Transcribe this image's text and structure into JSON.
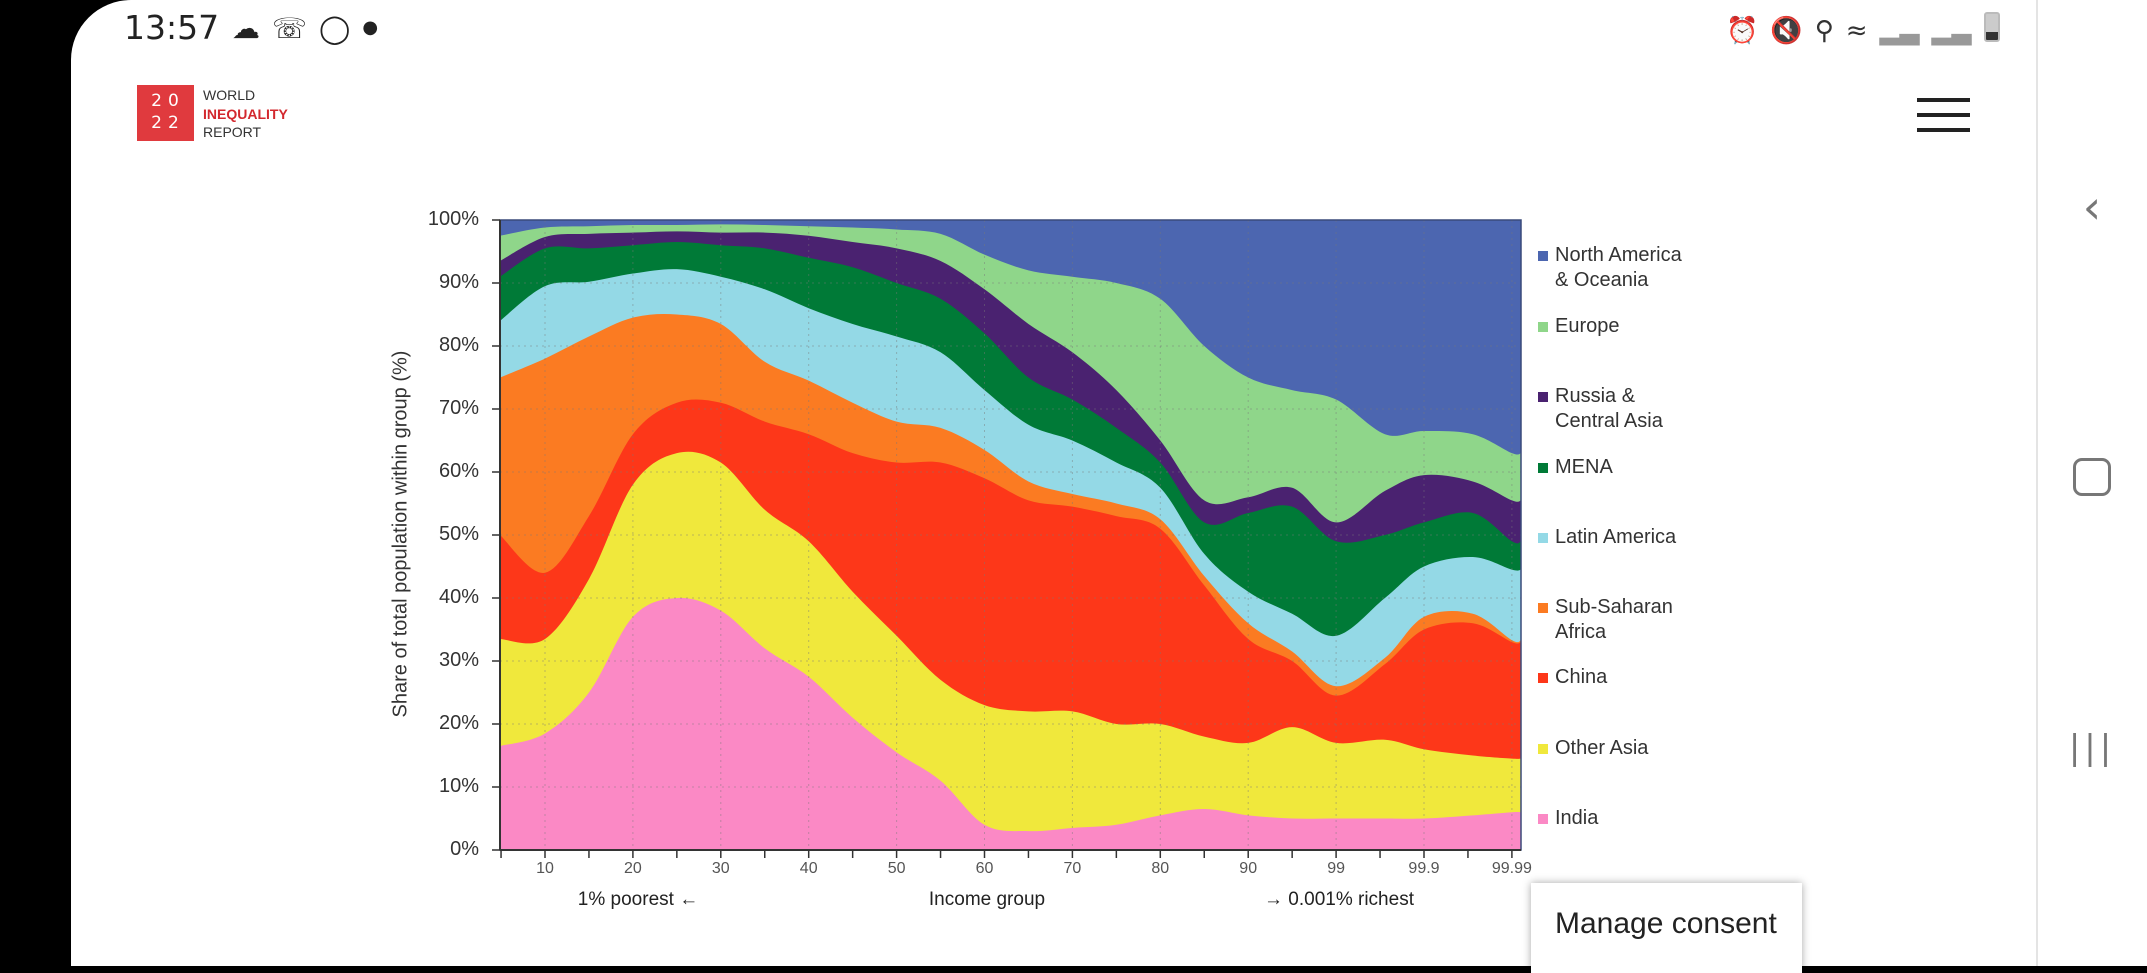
{
  "status_bar": {
    "time": "13:57",
    "left_icons": [
      "cloud-sync-icon",
      "whatsapp-icon",
      "instagram-icon",
      "dot-icon"
    ],
    "right_icons": [
      "alarm-icon",
      "mute-icon",
      "location-icon",
      "wifi-icon",
      "signal-icon",
      "signal-icon",
      "battery-icon"
    ]
  },
  "header": {
    "logo_year_top": "20",
    "logo_year_bottom": "22",
    "logo_line1": "WORLD",
    "logo_line2": "INEQUALITY",
    "logo_line3": "REPORT",
    "menu_icon": "hamburger-icon"
  },
  "consent": {
    "label": "Manage consent"
  },
  "nav": {
    "icons": [
      "back-icon",
      "home-icon",
      "recents-icon"
    ]
  },
  "chart_data": {
    "type": "area",
    "stacked": true,
    "ylabel": "Share of total population within group (%)",
    "xlabel": "Income group",
    "x_left_note": "1% poorest ←",
    "x_right_note": "→ 0.001% richest",
    "ylim": [
      0,
      100
    ],
    "y_ticks": [
      "0%",
      "10%",
      "20%",
      "30%",
      "40%",
      "50%",
      "60%",
      "70%",
      "80%",
      "90%",
      "100%"
    ],
    "x_ticks": [
      "10",
      "20",
      "30",
      "40",
      "50",
      "60",
      "70",
      "80",
      "90",
      "99",
      "99.9",
      "99.99"
    ],
    "x_scale": "percentile rank (non-linear above 90)",
    "grid": true,
    "legend": "right",
    "x": [
      5,
      10,
      15,
      20,
      25,
      30,
      35,
      40,
      45,
      50,
      55,
      60,
      65,
      70,
      75,
      80,
      85,
      90,
      94.5,
      99,
      99.5,
      99.9,
      99.95,
      99.99
    ],
    "series": [
      {
        "name": "India",
        "color": "#fb89c5",
        "values": [
          16.5,
          18.5,
          25,
          37,
          40,
          38,
          32,
          27.5,
          21,
          15.5,
          11,
          4,
          3,
          3.5,
          4,
          5.5,
          6.5,
          5.5,
          5,
          5,
          5,
          5,
          5.5,
          6
        ]
      },
      {
        "name": "Other Asia",
        "color": "#f0e83c",
        "values": [
          17,
          15,
          18,
          21,
          23,
          23.5,
          22,
          21.5,
          20,
          18.5,
          16,
          19,
          19,
          18.5,
          16,
          14.5,
          11.5,
          11.5,
          14.5,
          12,
          12.5,
          11,
          9.5,
          8.5
        ]
      },
      {
        "name": "China",
        "color": "#fd3719",
        "values": [
          16.5,
          10.5,
          10,
          8,
          8,
          9.5,
          14,
          17,
          22,
          27.5,
          34.5,
          36,
          33.5,
          32.5,
          33,
          31,
          24,
          16.5,
          10.5,
          7.5,
          12,
          19,
          21,
          18.5
        ]
      },
      {
        "name": "Sub-Saharan\nAfrica",
        "color": "#fb7b22",
        "values": [
          25,
          34,
          28.5,
          18.5,
          14,
          12.5,
          9.5,
          8.5,
          8,
          6.5,
          5.5,
          4.5,
          3,
          2,
          2,
          1.5,
          1.5,
          2.5,
          1.5,
          1.5,
          1,
          2,
          1.5,
          0.3
        ]
      },
      {
        "name": "Latin America",
        "color": "#94d9e6",
        "values": [
          9,
          11.5,
          8.7,
          7,
          7.2,
          7.5,
          11.5,
          11.5,
          12.5,
          13.5,
          12,
          9.5,
          9,
          8.5,
          6.5,
          5,
          3.5,
          5,
          6,
          8,
          9.5,
          8,
          9,
          11.2
        ]
      },
      {
        "name": "MENA",
        "color": "#007a37",
        "values": [
          7,
          6,
          5.3,
          4.5,
          4.3,
          5,
          6.5,
          8,
          9,
          8.5,
          8.5,
          9,
          7.5,
          6.5,
          5.5,
          4,
          5,
          12.5,
          17,
          15,
          10,
          7,
          7,
          4.5
        ]
      },
      {
        "name": "Russia &\nCentral Asia",
        "color": "#4a2270",
        "values": [
          2.5,
          1.8,
          2.3,
          2,
          1.7,
          2,
          2.5,
          3.5,
          4,
          5.5,
          6,
          7,
          8.5,
          7.5,
          6,
          3.5,
          3.5,
          2.5,
          3,
          3,
          7,
          7.5,
          5,
          6.5
        ]
      },
      {
        "name": "Europe",
        "color": "#8fd68a",
        "values": [
          4,
          1.5,
          1.2,
          1.2,
          1,
          1.3,
          1.2,
          1.5,
          2.3,
          3,
          4.3,
          5.5,
          8.5,
          12,
          17,
          22.5,
          24.5,
          19,
          15.5,
          19.5,
          9,
          7,
          7.5,
          7.5
        ]
      },
      {
        "name": "North America\n& Oceania",
        "color": "#4c66b0",
        "values": [
          2.5,
          1.2,
          1,
          0.8,
          0.8,
          0.7,
          0.8,
          1,
          1.2,
          1.5,
          2.2,
          5.5,
          8,
          9,
          10,
          12.5,
          20,
          25,
          27,
          28.5,
          34,
          33.5,
          34,
          37
        ]
      }
    ]
  }
}
